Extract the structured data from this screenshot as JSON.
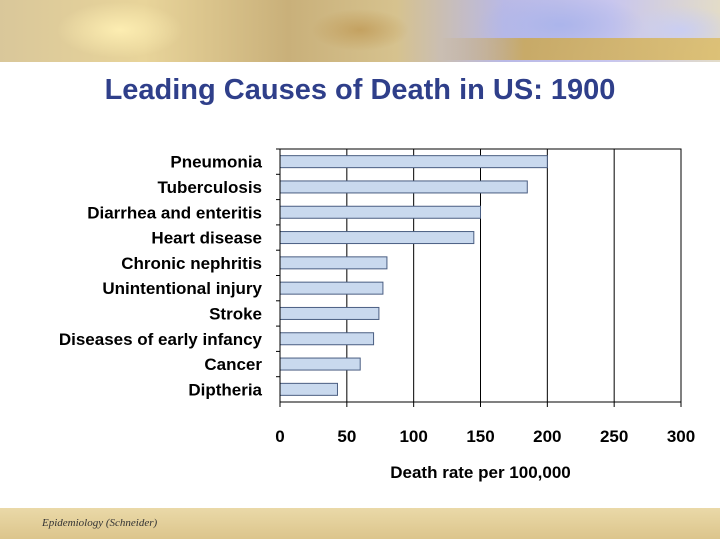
{
  "slide": {
    "title": "Leading Causes of Death in US: 1900",
    "footer": "Epidemiology (Schneider)"
  },
  "colors": {
    "title": "#2f3f8a",
    "bar_fill": "#c9d9ee",
    "bar_stroke": "#4a5e82"
  },
  "chart_data": {
    "type": "bar",
    "orientation": "horizontal",
    "categories": [
      "Pneumonia",
      "Tuberculosis",
      "Diarrhea and enteritis",
      "Heart disease",
      "Chronic nephritis",
      "Unintentional injury",
      "Stroke",
      "Diseases of early infancy",
      "Cancer",
      "Diptheria"
    ],
    "values": [
      200,
      185,
      150,
      145,
      80,
      77,
      74,
      70,
      60,
      43
    ],
    "title": "Leading Causes of Death in US: 1900",
    "xlabel": "Death rate per 100,000",
    "ylabel": "",
    "xlim": [
      0,
      300
    ],
    "xticks": [
      0,
      50,
      100,
      150,
      200,
      250,
      300
    ],
    "grid": true,
    "legend": "none"
  }
}
